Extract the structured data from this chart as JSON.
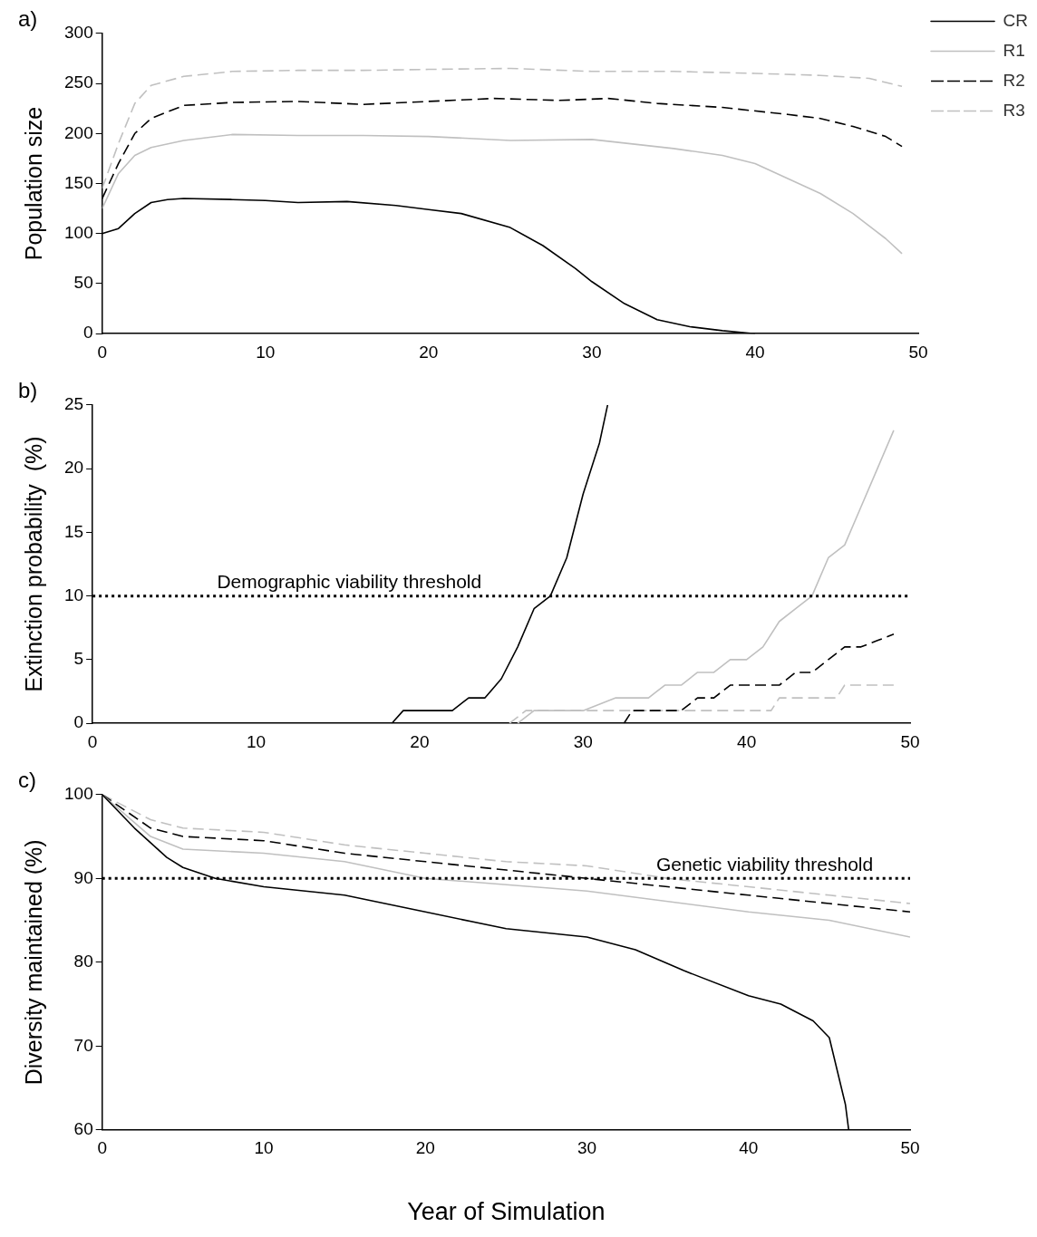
{
  "chart_data": [
    {
      "type": "line",
      "title": "a)",
      "ylabel": "Population size",
      "xlim": [
        0,
        50
      ],
      "xticks": [
        0,
        10,
        20,
        30,
        40,
        50
      ],
      "ylim": [
        0,
        300
      ],
      "yticks": [
        0,
        50,
        100,
        150,
        200,
        250,
        300
      ],
      "grid": false,
      "legend": "top right",
      "marker": "none",
      "series": [
        {
          "name": "CR",
          "color": "#000000",
          "line_style": "solid",
          "x": [
            0,
            1,
            2,
            3,
            4,
            5,
            8,
            10,
            12,
            15,
            18,
            20,
            22,
            25,
            27,
            29,
            30,
            32,
            34,
            36,
            38,
            40
          ],
          "values": [
            100,
            105,
            120,
            131,
            134,
            135,
            134,
            133,
            131,
            132,
            128,
            124,
            120,
            106,
            88,
            65,
            52,
            30,
            14,
            7,
            3,
            0
          ]
        },
        {
          "name": "R1",
          "color": "#c0c0c0",
          "line_style": "solid",
          "x": [
            0,
            1,
            2,
            3,
            5,
            8,
            12,
            16,
            20,
            25,
            30,
            35,
            38,
            40,
            42,
            44,
            46,
            48,
            49
          ],
          "values": [
            125,
            160,
            178,
            186,
            193,
            199,
            198,
            198,
            197,
            193,
            194,
            185,
            178,
            170,
            155,
            140,
            120,
            95,
            80
          ]
        },
        {
          "name": "R2",
          "color": "#000000",
          "line_style": "dashed",
          "x": [
            0,
            1,
            2,
            3,
            5,
            8,
            12,
            16,
            20,
            24,
            28,
            31,
            34,
            38,
            42,
            44,
            46,
            48,
            49
          ],
          "values": [
            135,
            170,
            200,
            215,
            228,
            231,
            232,
            229,
            232,
            235,
            233,
            235,
            230,
            226,
            219,
            215,
            207,
            197,
            187
          ]
        },
        {
          "name": "R3",
          "color": "#c0c0c0",
          "line_style": "dashed",
          "x": [
            0,
            1,
            2,
            3,
            5,
            8,
            12,
            16,
            20,
            25,
            30,
            35,
            40,
            44,
            47,
            49
          ],
          "values": [
            145,
            190,
            230,
            248,
            257,
            262,
            263,
            263,
            264,
            265,
            262,
            262,
            260,
            258,
            255,
            247
          ]
        }
      ]
    },
    {
      "type": "line",
      "title": "b)",
      "ylabel": "Extinction probability  (%)",
      "xlim": [
        0,
        50
      ],
      "xticks": [
        0,
        10,
        20,
        30,
        40,
        50
      ],
      "ylim": [
        0,
        25
      ],
      "yticks": [
        0,
        5,
        10,
        15,
        20,
        25
      ],
      "grid": false,
      "marker": "none",
      "ref_lines": [
        {
          "axis": "y",
          "value": 10,
          "line_style": "dotted",
          "color": "#000000"
        }
      ],
      "annotations": [
        {
          "text": "Demographic viability threshold",
          "x": 15.7,
          "y": 10
        }
      ],
      "series": [
        {
          "color": "#000000",
          "line_style": "solid",
          "x": [
            18.3,
            19,
            20,
            22,
            23,
            24,
            25,
            26,
            27,
            28,
            29,
            30,
            31,
            31.5
          ],
          "values": [
            0,
            1,
            1,
            1,
            2,
            2,
            3.5,
            6,
            9,
            10,
            13,
            18,
            22,
            25
          ]
        },
        {
          "color": "#c0c0c0",
          "line_style": "solid",
          "x": [
            26,
            27,
            30,
            32,
            34,
            35,
            36,
            37,
            38,
            39,
            40,
            41,
            42,
            43,
            44,
            45,
            46,
            47,
            48,
            49
          ],
          "values": [
            0,
            1,
            1,
            2,
            2,
            3,
            3,
            4,
            4,
            5,
            5,
            6,
            8,
            9,
            10,
            13,
            14,
            17,
            20,
            23
          ]
        },
        {
          "color": "#000000",
          "line_style": "dashed",
          "x": [
            32.5,
            33,
            36,
            37,
            38,
            39,
            42,
            43,
            44,
            45,
            46,
            47,
            48,
            49
          ],
          "values": [
            0,
            1,
            1,
            2,
            2,
            3,
            3,
            4,
            4,
            5,
            6,
            6,
            6.5,
            7
          ]
        },
        {
          "color": "#c0c0c0",
          "line_style": "dashed",
          "x": [
            25.5,
            26.5,
            41.5,
            42,
            45.5,
            46,
            49
          ],
          "values": [
            0,
            1,
            1,
            2,
            2,
            3,
            3
          ]
        }
      ]
    },
    {
      "type": "line",
      "title": "c)",
      "ylabel": "Diversity maintained (%)",
      "xlabel": "Year of Simulation",
      "xlim": [
        0,
        50
      ],
      "xticks": [
        0,
        10,
        20,
        30,
        40,
        50
      ],
      "ylim": [
        60,
        100
      ],
      "yticks": [
        60,
        70,
        80,
        90,
        100
      ],
      "grid": false,
      "marker": "none",
      "ref_lines": [
        {
          "axis": "y",
          "value": 90,
          "line_style": "dotted",
          "color": "#000000"
        }
      ],
      "annotations": [
        {
          "text": "Genetic viability threshold",
          "x": 41,
          "y": 90
        }
      ],
      "series": [
        {
          "color": "#000000",
          "line_style": "solid",
          "x": [
            0,
            2,
            4,
            5,
            7,
            10,
            15,
            20,
            25,
            30,
            33,
            36,
            40,
            42,
            44,
            45,
            46,
            46.2
          ],
          "values": [
            100,
            96,
            92.5,
            91.3,
            90,
            89,
            88,
            86,
            84,
            83,
            81.5,
            79,
            76,
            75,
            73,
            71,
            63,
            60
          ]
        },
        {
          "color": "#c0c0c0",
          "line_style": "solid",
          "x": [
            0,
            3,
            5,
            10,
            15,
            20,
            30,
            40,
            45,
            50
          ],
          "values": [
            100,
            95,
            93.5,
            93,
            92,
            90,
            88.5,
            86,
            85,
            83
          ]
        },
        {
          "color": "#000000",
          "line_style": "dashed",
          "x": [
            0,
            3,
            5,
            10,
            15,
            20,
            25,
            30,
            35,
            40,
            45,
            50
          ],
          "values": [
            100,
            96,
            95,
            94.5,
            93,
            92,
            91,
            90,
            89,
            88,
            87,
            86
          ]
        },
        {
          "color": "#c0c0c0",
          "line_style": "dashed",
          "x": [
            0,
            3,
            5,
            10,
            15,
            20,
            25,
            30,
            35,
            40,
            45,
            50
          ],
          "values": [
            100,
            97,
            96,
            95.5,
            94,
            93,
            92,
            91.5,
            90,
            89,
            88,
            87
          ]
        }
      ]
    }
  ]
}
